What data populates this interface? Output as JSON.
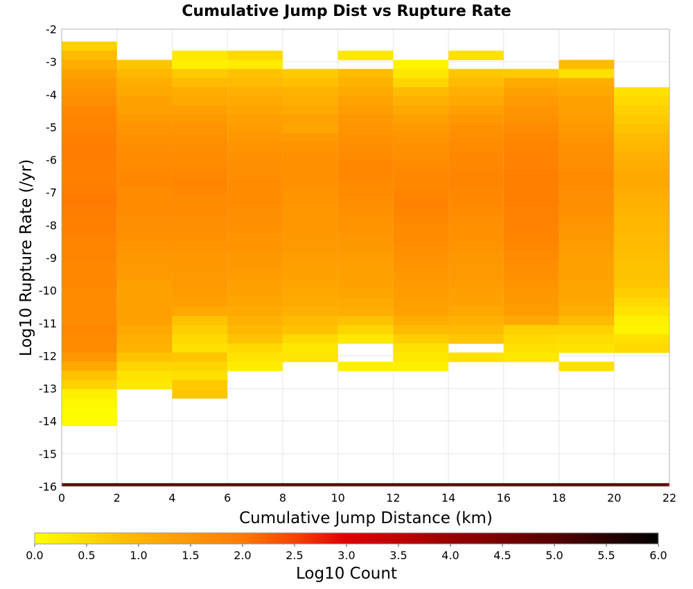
{
  "chart_data": {
    "type": "heatmap",
    "title": "Cumulative Jump Dist vs Rupture Rate",
    "xlabel": "Cumulative Jump Distance (km)",
    "ylabel": "Log10 Rupture Rate (/yr)",
    "xlim": [
      0,
      22
    ],
    "ylim": [
      -16,
      -2
    ],
    "x_ticks": [
      "0",
      "2",
      "4",
      "6",
      "8",
      "10",
      "12",
      "14",
      "16",
      "18",
      "20",
      "22"
    ],
    "y_ticks": [
      "-2",
      "-3",
      "-4",
      "-5",
      "-6",
      "-7",
      "-8",
      "-9",
      "-10",
      "-11",
      "-12",
      "-13",
      "-14",
      "-15",
      "-16"
    ],
    "grid": true,
    "x_bin_width_km": 2,
    "y_bin_height": 0.28,
    "colorbar": {
      "label": "Log10 Count",
      "range": [
        0,
        6
      ],
      "ticks": [
        "0.0",
        "0.5",
        "1.0",
        "1.5",
        "2.0",
        "2.5",
        "3.0",
        "3.5",
        "4.0",
        "4.5",
        "5.0",
        "5.5",
        "6.0"
      ],
      "stops": [
        {
          "v": 0.0,
          "color": "#ffff00"
        },
        {
          "v": 1.0,
          "color": "#ffb300"
        },
        {
          "v": 2.0,
          "color": "#ff7a00"
        },
        {
          "v": 2.5,
          "color": "#f54400"
        },
        {
          "v": 3.0,
          "color": "#dd0000"
        },
        {
          "v": 3.5,
          "color": "#c00000"
        },
        {
          "v": 4.0,
          "color": "#990000"
        },
        {
          "v": 5.0,
          "color": "#550000"
        },
        {
          "v": 6.0,
          "color": "#000000"
        }
      ]
    },
    "columns": [
      {
        "x": 1,
        "ytop": -2.38,
        "values": [
          0.6,
          0.9,
          1.1,
          1.3,
          1.45,
          1.55,
          1.65,
          1.75,
          1.8,
          1.85,
          1.9,
          1.95,
          1.95,
          1.9,
          1.9,
          1.9,
          1.95,
          2.0,
          1.95,
          1.9,
          1.9,
          1.85,
          1.8,
          1.8,
          1.75,
          1.75,
          1.75,
          1.7,
          1.7,
          1.7,
          1.7,
          1.75,
          1.7,
          1.7,
          1.5,
          1.2,
          0.8,
          0.6,
          0.2,
          0.1,
          0.05,
          0.05
        ]
      },
      {
        "x": 3,
        "ytop": -2.94,
        "values": [
          0.75,
          0.95,
          1.1,
          1.2,
          1.3,
          1.35,
          1.45,
          1.55,
          1.6,
          1.65,
          1.7,
          1.7,
          1.75,
          1.75,
          1.7,
          1.7,
          1.7,
          1.65,
          1.65,
          1.6,
          1.55,
          1.5,
          1.45,
          1.45,
          1.35,
          1.3,
          1.3,
          1.35,
          1.3,
          1.2,
          1.1,
          1.0,
          0.8,
          0.55,
          0.35,
          0.3
        ]
      },
      {
        "x": 5,
        "ytop": -2.66,
        "values": [
          0.3,
          0.2,
          0.7,
          0.9,
          1.1,
          1.2,
          1.35,
          1.45,
          1.55,
          1.6,
          1.65,
          1.7,
          1.7,
          1.75,
          1.8,
          1.75,
          1.7,
          1.7,
          1.65,
          1.65,
          1.6,
          1.55,
          1.5,
          1.5,
          1.45,
          1.45,
          1.4,
          1.35,
          1.2,
          0.8,
          0.65,
          0.5,
          0.4,
          0.75,
          0.55,
          0.4,
          0.7,
          0.75
        ]
      },
      {
        "x": 7,
        "ytop": -2.66,
        "values": [
          0.5,
          0.25,
          0.8,
          0.9,
          1.05,
          1.15,
          1.25,
          1.35,
          1.4,
          1.5,
          1.55,
          1.6,
          1.65,
          1.65,
          1.7,
          1.7,
          1.7,
          1.65,
          1.65,
          1.6,
          1.55,
          1.55,
          1.5,
          1.45,
          1.4,
          1.35,
          1.3,
          1.25,
          1.15,
          1.05,
          0.95,
          0.8,
          0.5,
          0.35,
          0.25
        ]
      },
      {
        "x": 9,
        "ytop": -3.22,
        "values": [
          0.7,
          0.85,
          1.0,
          1.1,
          1.2,
          1.35,
          1.25,
          1.45,
          1.55,
          1.6,
          1.6,
          1.6,
          1.6,
          1.55,
          1.55,
          1.5,
          1.5,
          1.5,
          1.45,
          1.45,
          1.4,
          1.35,
          1.3,
          1.25,
          1.2,
          1.15,
          1.05,
          0.9,
          0.8,
          0.5,
          0.3,
          0.35
        ]
      },
      {
        "x": 11,
        "ytop": -2.66,
        "values": [
          0.3,
          null,
          0.9,
          1.0,
          1.15,
          1.3,
          1.4,
          1.5,
          1.55,
          1.6,
          1.65,
          1.7,
          1.75,
          1.75,
          1.7,
          1.7,
          1.65,
          1.6,
          1.55,
          1.55,
          1.5,
          1.45,
          1.4,
          1.35,
          1.35,
          1.3,
          1.25,
          1.15,
          1.1,
          0.8,
          0.55,
          0.3,
          null,
          null,
          0.2
        ]
      },
      {
        "x": 13,
        "ytop": -2.94,
        "values": [
          0.15,
          0.3,
          0.55,
          0.9,
          1.05,
          1.2,
          1.35,
          1.45,
          1.55,
          1.6,
          1.65,
          1.7,
          1.75,
          1.75,
          1.8,
          1.85,
          1.8,
          1.75,
          1.7,
          1.7,
          1.65,
          1.6,
          1.55,
          1.5,
          1.45,
          1.4,
          1.35,
          1.3,
          1.1,
          0.9,
          0.65,
          0.4,
          0.3,
          0.2
        ]
      },
      {
        "x": 15,
        "ytop": -2.66,
        "values": [
          0.4,
          null,
          0.75,
          0.9,
          1.05,
          1.2,
          1.35,
          1.5,
          1.6,
          1.65,
          1.7,
          1.75,
          1.75,
          1.8,
          1.8,
          1.75,
          1.75,
          1.7,
          1.65,
          1.6,
          1.6,
          1.55,
          1.5,
          1.45,
          1.45,
          1.4,
          1.35,
          1.3,
          1.2,
          1.05,
          0.9,
          0.75,
          null,
          0.4
        ]
      },
      {
        "x": 17,
        "ytop": -3.22,
        "values": [
          0.7,
          1.15,
          1.3,
          1.45,
          1.55,
          1.6,
          1.7,
          1.75,
          1.8,
          1.85,
          1.85,
          1.9,
          1.9,
          1.9,
          1.9,
          1.85,
          1.85,
          1.85,
          1.8,
          1.75,
          1.7,
          1.65,
          1.6,
          1.55,
          1.5,
          1.45,
          1.4,
          1.2,
          0.6,
          0.5,
          0.4,
          0.3
        ]
      },
      {
        "x": 19,
        "ytop": -2.94,
        "values": [
          0.9,
          0.4,
          1.1,
          1.2,
          1.3,
          1.35,
          1.4,
          1.45,
          1.55,
          1.6,
          1.65,
          1.65,
          1.7,
          1.7,
          1.65,
          1.65,
          1.6,
          1.55,
          1.5,
          1.45,
          1.4,
          1.35,
          1.3,
          1.3,
          1.25,
          1.25,
          1.2,
          1.1,
          0.9,
          0.6,
          0.45,
          0.35,
          null,
          0.4
        ]
      },
      {
        "x": 21,
        "ytop": -3.78,
        "values": [
          0.4,
          0.5,
          0.6,
          0.7,
          0.8,
          0.9,
          0.95,
          1.05,
          1.1,
          1.15,
          1.2,
          1.1,
          1.05,
          1.0,
          0.95,
          0.95,
          0.9,
          0.9,
          0.85,
          0.8,
          0.8,
          0.75,
          0.65,
          0.5,
          0.35,
          0.2,
          0.15,
          0.4,
          0.5
        ]
      }
    ],
    "bottom_band": {
      "y0": -16,
      "y1": -15.9,
      "value": 4.7
    }
  }
}
